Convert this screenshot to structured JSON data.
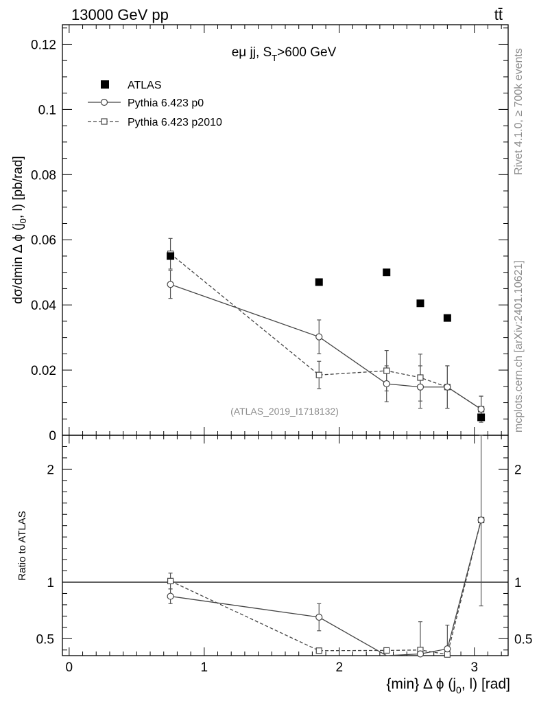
{
  "header": {
    "energy_label": "13000 GeV pp",
    "process_label": "tt̄"
  },
  "watermarks": {
    "rivet": "Rivet 4.1.0, ≥ 700k events",
    "mcplots": "mcplots.cern.ch [arXiv:2401.10621]",
    "analysis_id": "(ATLAS_2019_I1718132)"
  },
  "chart_data": [
    {
      "type": "scatter",
      "title": "eμ jj, S_T>600 GeV",
      "ylabel": "dσ/dmin Δ φ (j_0, l) [pb/rad]",
      "xlabel": "",
      "xlim": [
        -0.05,
        3.25
      ],
      "ylim": [
        0,
        0.126
      ],
      "yticks": [
        0,
        0.02,
        0.04,
        0.06,
        0.08,
        0.1,
        0.12
      ],
      "ytick_labels": [
        "0",
        "0.02",
        "0.04",
        "0.06",
        "0.08",
        "0.1",
        "0.12"
      ],
      "legend_position": "top-left",
      "series": [
        {
          "name": "ATLAS",
          "style": "filled-square",
          "x": [
            0.75,
            1.85,
            2.35,
            2.6,
            2.8,
            3.05
          ],
          "values": [
            0.055,
            0.047,
            0.05,
            0.0405,
            0.036,
            0.0055
          ]
        },
        {
          "name": "Pythia 6.423 p0",
          "style": "circle-solid-line",
          "x": [
            0.75,
            1.85,
            2.35,
            2.6,
            2.8,
            3.05
          ],
          "values": [
            0.0463,
            0.0302,
            0.0158,
            0.0148,
            0.0148,
            0.008
          ],
          "errors": [
            0.0043,
            0.0052,
            0.0055,
            0.0065,
            0.0065,
            0.004
          ]
        },
        {
          "name": "Pythia 6.423 p2010",
          "style": "square-dashed-line",
          "x": [
            0.75,
            1.85,
            2.35,
            2.6,
            2.8,
            3.05
          ],
          "values": [
            0.0557,
            0.0185,
            0.0198,
            0.0177,
            0.0148,
            0.008
          ],
          "errors": [
            0.0047,
            0.0042,
            0.0062,
            0.0072,
            0.0065,
            0.004
          ]
        }
      ]
    },
    {
      "type": "scatter",
      "title": "",
      "ylabel": "Ratio to ATLAS",
      "xlabel": "{min} Δ φ (j_0, l) [rad]",
      "xlim": [
        -0.05,
        3.25
      ],
      "ylim": [
        0.35,
        2.3
      ],
      "xticks": [
        0,
        1,
        2,
        3
      ],
      "xtick_labels": [
        "0",
        "1",
        "2",
        "3"
      ],
      "yticks": [
        0.5,
        1,
        2
      ],
      "ytick_labels": [
        "0.5",
        "1",
        "2"
      ],
      "reference_line": 1,
      "series": [
        {
          "name": "Pythia 6.423 p0",
          "style": "circle-solid-line",
          "x": [
            0.75,
            1.85,
            2.35,
            2.6,
            2.8,
            3.05
          ],
          "values": [
            0.875,
            0.69,
            0.316,
            0.365,
            0.41,
            1.55
          ],
          "errors": [
            0.065,
            0.12,
            0.0,
            0.0,
            0.0,
            0.0
          ]
        },
        {
          "name": "Pythia 6.423 p2010",
          "style": "square-dashed-line",
          "x": [
            0.75,
            1.85,
            2.35,
            2.6,
            2.8,
            3.05
          ],
          "values": [
            1.01,
            0.394,
            0.396,
            0.4,
            0.36,
            1.55
          ],
          "errors": [
            0.07,
            0.0,
            0.0,
            0.25,
            0.26,
            0.76
          ]
        }
      ]
    }
  ]
}
